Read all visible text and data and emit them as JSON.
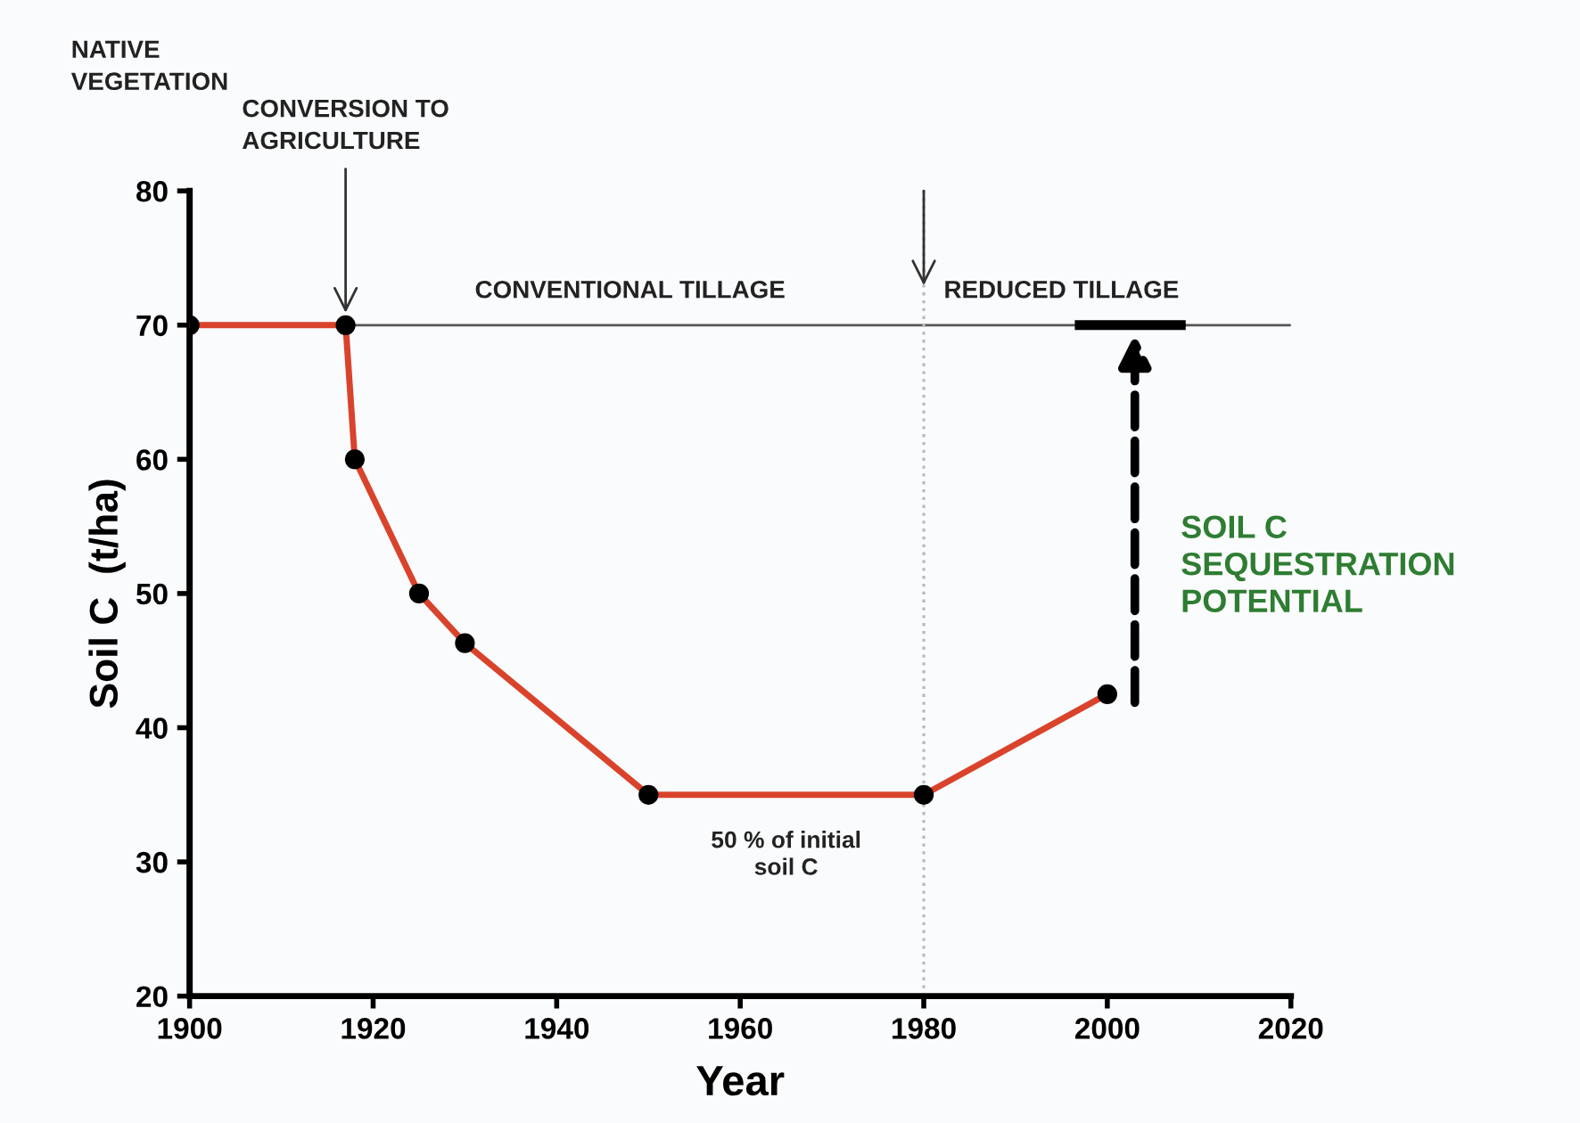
{
  "chart_data": {
    "type": "line",
    "xlabel": "Year",
    "ylabel": "Soil C  (t/ha)",
    "x": [
      1900,
      1917,
      1918,
      1925,
      1930,
      1950,
      1980,
      2000
    ],
    "series": [
      {
        "color": "#d9432b",
        "values": [
          70,
          70,
          60,
          50,
          46.3,
          35,
          35,
          42.5
        ]
      }
    ],
    "marker": "circle",
    "line_style": "solid",
    "grid": false,
    "legend": false,
    "xlim": [
      1900,
      2020
    ],
    "ylim": [
      20,
      80
    ],
    "xticks": [
      1900,
      1920,
      1940,
      1960,
      1980,
      2000,
      2020
    ],
    "yticks": [
      20,
      30,
      40,
      50,
      60,
      70,
      80
    ],
    "ref_lines": [
      {
        "axis": "y",
        "value": 70,
        "label": null,
        "color": "#555555",
        "line_style": "solid"
      },
      {
        "axis": "x",
        "value": 1980,
        "label": null,
        "color": "#bbbbbb",
        "line_style": "dotted"
      }
    ],
    "annotations": [
      "NATIVE\nVEGETATION",
      {
        "text": "CONVERSION TO\nAGRICULTURE",
        "x": 1917,
        "y": 70
      },
      "CONVENTIONAL TILLAGE",
      {
        "text": "REDUCED TILLAGE",
        "x": 1980,
        "y": 70
      },
      "50 % of initial\nsoil C",
      "SOIL C\nSEQUESTRATION\nPOTENTIAL"
    ]
  }
}
